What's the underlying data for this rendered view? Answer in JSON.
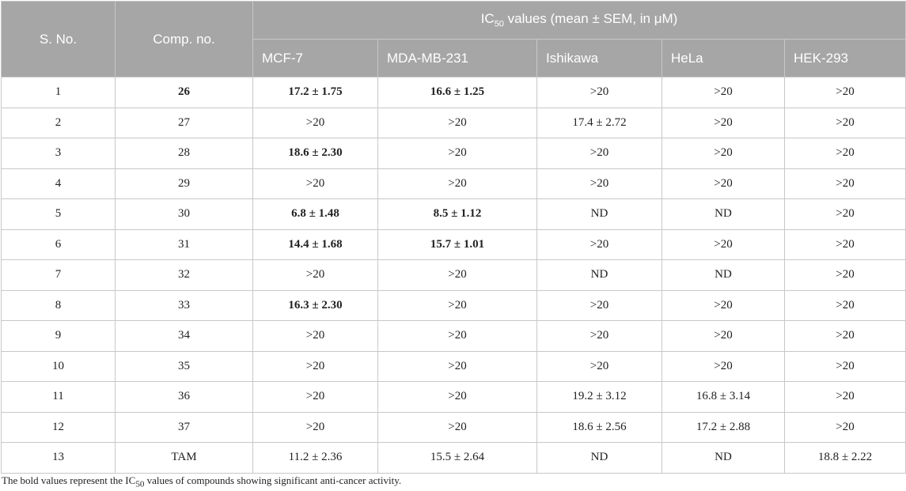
{
  "header": {
    "sno": "S. No.",
    "comp": "Comp. no.",
    "group_prefix": "IC",
    "group_sub": "50",
    "group_suffix": " values (mean ± SEM, in μM)",
    "lines": [
      "MCF-7",
      "MDA-MB-231",
      "Ishikawa",
      "HeLa",
      "HEK-293"
    ]
  },
  "rows": [
    {
      "sno": "1",
      "comp": "26",
      "comp_bold": true,
      "vals": [
        "17.2 ± 1.75",
        "16.6 ± 1.25",
        ">20",
        ">20",
        ">20"
      ],
      "bold": [
        true,
        true,
        false,
        false,
        false
      ]
    },
    {
      "sno": "2",
      "comp": "27",
      "comp_bold": false,
      "vals": [
        ">20",
        ">20",
        "17.4 ± 2.72",
        ">20",
        ">20"
      ],
      "bold": [
        false,
        false,
        false,
        false,
        false
      ]
    },
    {
      "sno": "3",
      "comp": "28",
      "comp_bold": false,
      "vals": [
        "18.6 ± 2.30",
        ">20",
        ">20",
        ">20",
        ">20"
      ],
      "bold": [
        true,
        false,
        false,
        false,
        false
      ]
    },
    {
      "sno": "4",
      "comp": "29",
      "comp_bold": false,
      "vals": [
        ">20",
        ">20",
        ">20",
        ">20",
        ">20"
      ],
      "bold": [
        false,
        false,
        false,
        false,
        false
      ]
    },
    {
      "sno": "5",
      "comp": "30",
      "comp_bold": false,
      "vals": [
        "6.8 ± 1.48",
        "8.5 ± 1.12",
        "ND",
        "ND",
        ">20"
      ],
      "bold": [
        true,
        true,
        false,
        false,
        false
      ]
    },
    {
      "sno": "6",
      "comp": "31",
      "comp_bold": false,
      "vals": [
        "14.4 ± 1.68",
        "15.7 ± 1.01",
        ">20",
        ">20",
        ">20"
      ],
      "bold": [
        true,
        true,
        false,
        false,
        false
      ]
    },
    {
      "sno": "7",
      "comp": "32",
      "comp_bold": false,
      "vals": [
        ">20",
        ">20",
        "ND",
        "ND",
        ">20"
      ],
      "bold": [
        false,
        false,
        false,
        false,
        false
      ]
    },
    {
      "sno": "8",
      "comp": "33",
      "comp_bold": false,
      "vals": [
        "16.3 ± 2.30",
        ">20",
        ">20",
        ">20",
        ">20"
      ],
      "bold": [
        true,
        false,
        false,
        false,
        false
      ]
    },
    {
      "sno": "9",
      "comp": "34",
      "comp_bold": false,
      "vals": [
        ">20",
        ">20",
        ">20",
        ">20",
        ">20"
      ],
      "bold": [
        false,
        false,
        false,
        false,
        false
      ]
    },
    {
      "sno": "10",
      "comp": "35",
      "comp_bold": false,
      "vals": [
        ">20",
        ">20",
        ">20",
        ">20",
        ">20"
      ],
      "bold": [
        false,
        false,
        false,
        false,
        false
      ]
    },
    {
      "sno": "11",
      "comp": "36",
      "comp_bold": false,
      "vals": [
        ">20",
        ">20",
        "19.2 ± 3.12",
        "16.8 ± 3.14",
        ">20"
      ],
      "bold": [
        false,
        false,
        false,
        false,
        false
      ]
    },
    {
      "sno": "12",
      "comp": "37",
      "comp_bold": false,
      "vals": [
        ">20",
        ">20",
        "18.6 ± 2.56",
        "17.2 ± 2.88",
        ">20"
      ],
      "bold": [
        false,
        false,
        false,
        false,
        false
      ]
    },
    {
      "sno": "13",
      "comp": "TAM",
      "comp_bold": false,
      "vals": [
        "11.2 ± 2.36",
        "15.5 ± 2.64",
        "ND",
        "ND",
        "18.8 ± 2.22"
      ],
      "bold": [
        false,
        false,
        false,
        false,
        false
      ]
    }
  ],
  "footnote": {
    "prefix": "The bold values represent the IC",
    "sub": "50",
    "suffix": " values of compounds showing significant anti-cancer activity."
  },
  "colors": {
    "header_bg": "#a6a6a6",
    "header_text": "#ffffff",
    "border": "#c8c8c8"
  }
}
